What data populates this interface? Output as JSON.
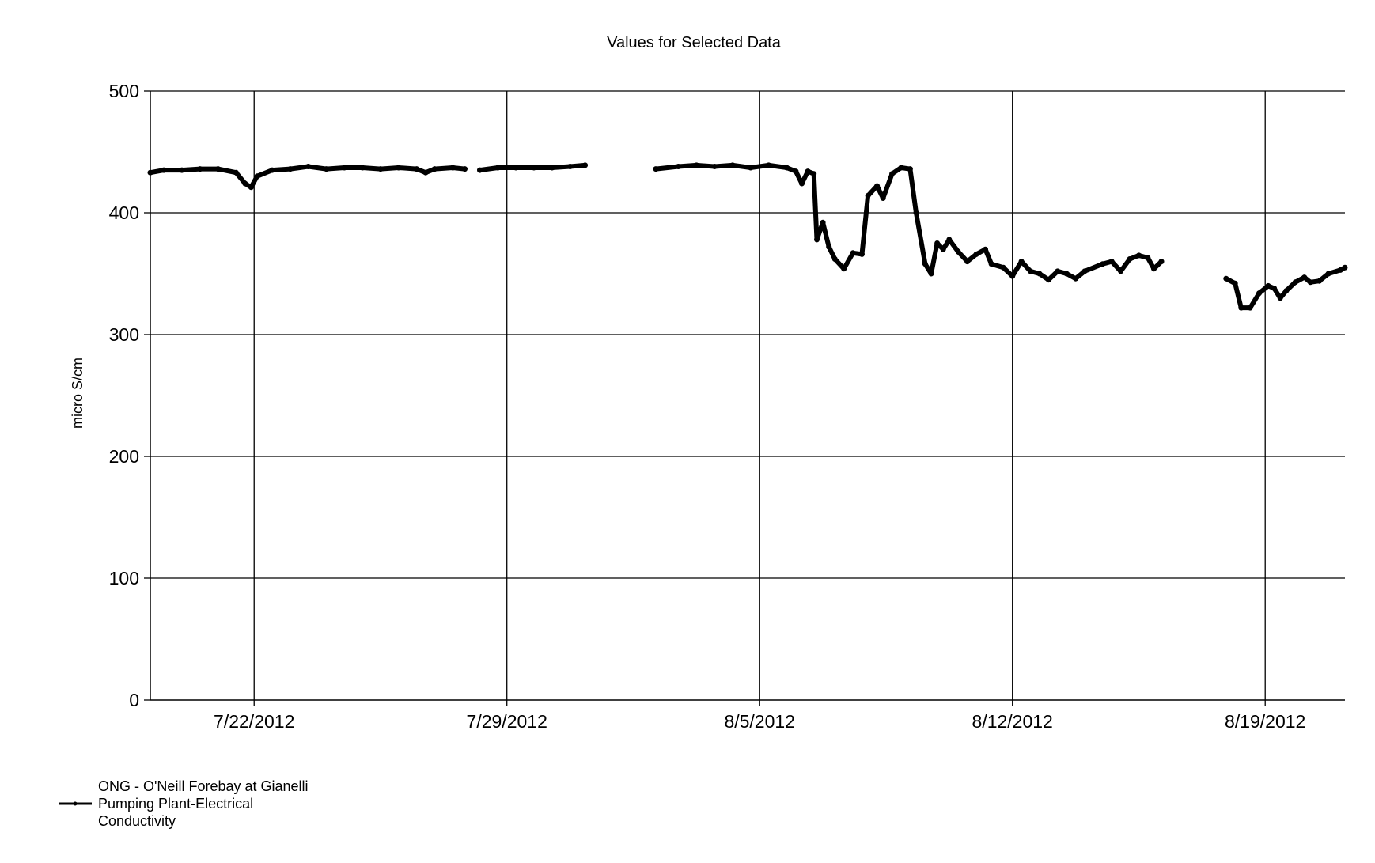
{
  "chart_data": {
    "type": "line",
    "title": "Values for Selected Data",
    "xlabel": "",
    "ylabel": "micro S/cm",
    "ylim": [
      0,
      500
    ],
    "yticks": [
      0,
      100,
      200,
      300,
      400,
      500
    ],
    "xlim": [
      "7/19/2012 03:00",
      "8/21/2012 05:00"
    ],
    "xticks": [
      {
        "date": "7/22/2012",
        "label": "7/22/2012"
      },
      {
        "date": "7/29/2012",
        "label": "7/29/2012"
      },
      {
        "date": "8/5/2012",
        "label": "8/5/2012"
      },
      {
        "date": "8/12/2012",
        "label": "8/12/2012"
      },
      {
        "date": "8/19/2012",
        "label": "8/19/2012"
      }
    ],
    "grid": true,
    "legend_position": "bottom-left",
    "series_color": "#000000",
    "series": [
      {
        "name": "ONG - O'Neill Forebay at Gianelli Pumping Plant-Electrical Conductivity",
        "segments": [
          [
            [
              "7/19/2012 03:00",
              433
            ],
            [
              "7/19/2012 12:00",
              435
            ],
            [
              "7/20/2012 00:00",
              435
            ],
            [
              "7/20/2012 12:00",
              436
            ],
            [
              "7/21/2012 00:00",
              436
            ],
            [
              "7/21/2012 12:00",
              433
            ],
            [
              "7/21/2012 18:00",
              424
            ],
            [
              "7/21/2012 22:00",
              421
            ],
            [
              "7/22/2012 02:00",
              430
            ],
            [
              "7/22/2012 12:00",
              435
            ],
            [
              "7/23/2012 00:00",
              436
            ],
            [
              "7/23/2012 12:00",
              438
            ],
            [
              "7/24/2012 00:00",
              436
            ],
            [
              "7/24/2012 12:00",
              437
            ],
            [
              "7/25/2012 00:00",
              437
            ],
            [
              "7/25/2012 12:00",
              436
            ],
            [
              "7/26/2012 00:00",
              437
            ],
            [
              "7/26/2012 12:00",
              436
            ],
            [
              "7/26/2012 18:00",
              433
            ],
            [
              "7/27/2012 00:00",
              436
            ],
            [
              "7/27/2012 12:00",
              437
            ],
            [
              "7/27/2012 20:00",
              436
            ]
          ],
          [
            [
              "7/28/2012 06:00",
              435
            ],
            [
              "7/28/2012 18:00",
              437
            ],
            [
              "7/29/2012 06:00",
              437
            ],
            [
              "7/29/2012 18:00",
              437
            ],
            [
              "7/30/2012 06:00",
              437
            ],
            [
              "7/30/2012 18:00",
              438
            ],
            [
              "7/31/2012 04:00",
              439
            ]
          ],
          [
            [
              "8/2/2012 03:00",
              436
            ],
            [
              "8/2/2012 18:00",
              438
            ],
            [
              "8/3/2012 06:00",
              439
            ],
            [
              "8/3/2012 18:00",
              438
            ],
            [
              "8/4/2012 06:00",
              439
            ],
            [
              "8/4/2012 18:00",
              437
            ],
            [
              "8/5/2012 06:00",
              439
            ],
            [
              "8/5/2012 18:00",
              437
            ],
            [
              "8/6/2012 00:00",
              434
            ],
            [
              "8/6/2012 04:00",
              424
            ],
            [
              "8/6/2012 08:00",
              434
            ],
            [
              "8/6/2012 12:00",
              432
            ],
            [
              "8/6/2012 14:00",
              378
            ],
            [
              "8/6/2012 18:00",
              392
            ],
            [
              "8/6/2012 22:00",
              372
            ],
            [
              "8/7/2012 02:00",
              362
            ],
            [
              "8/7/2012 08:00",
              354
            ],
            [
              "8/7/2012 14:00",
              367
            ],
            [
              "8/7/2012 20:00",
              366
            ],
            [
              "8/8/2012 00:00",
              414
            ],
            [
              "8/8/2012 06:00",
              422
            ],
            [
              "8/8/2012 10:00",
              412
            ],
            [
              "8/8/2012 16:00",
              432
            ],
            [
              "8/8/2012 22:00",
              437
            ],
            [
              "8/9/2012 04:00",
              436
            ],
            [
              "8/9/2012 08:00",
              400
            ],
            [
              "8/9/2012 14:00",
              358
            ],
            [
              "8/9/2012 18:00",
              350
            ],
            [
              "8/9/2012 22:00",
              375
            ],
            [
              "8/10/2012 02:00",
              370
            ],
            [
              "8/10/2012 06:00",
              378
            ],
            [
              "8/10/2012 12:00",
              368
            ],
            [
              "8/10/2012 18:00",
              360
            ],
            [
              "8/11/2012 00:00",
              366
            ],
            [
              "8/11/2012 06:00",
              370
            ],
            [
              "8/11/2012 10:00",
              358
            ],
            [
              "8/11/2012 18:00",
              355
            ],
            [
              "8/12/2012 00:00",
              348
            ],
            [
              "8/12/2012 06:00",
              360
            ],
            [
              "8/12/2012 12:00",
              352
            ],
            [
              "8/12/2012 18:00",
              350
            ],
            [
              "8/13/2012 00:00",
              345
            ],
            [
              "8/13/2012 06:00",
              352
            ],
            [
              "8/13/2012 12:00",
              350
            ],
            [
              "8/13/2012 18:00",
              346
            ],
            [
              "8/14/2012 00:00",
              352
            ],
            [
              "8/14/2012 12:00",
              358
            ],
            [
              "8/14/2012 18:00",
              360
            ],
            [
              "8/15/2012 00:00",
              352
            ],
            [
              "8/15/2012 06:00",
              362
            ],
            [
              "8/15/2012 12:00",
              365
            ],
            [
              "8/15/2012 18:00",
              363
            ],
            [
              "8/15/2012 22:00",
              354
            ],
            [
              "8/16/2012 03:00",
              360
            ]
          ],
          [
            [
              "8/17/2012 22:00",
              346
            ],
            [
              "8/18/2012 04:00",
              342
            ],
            [
              "8/18/2012 08:00",
              322
            ],
            [
              "8/18/2012 14:00",
              322
            ],
            [
              "8/18/2012 20:00",
              334
            ],
            [
              "8/19/2012 02:00",
              340
            ],
            [
              "8/19/2012 06:00",
              338
            ],
            [
              "8/19/2012 10:00",
              330
            ],
            [
              "8/19/2012 14:00",
              336
            ],
            [
              "8/19/2012 20:00",
              343
            ],
            [
              "8/20/2012 02:00",
              347
            ],
            [
              "8/20/2012 06:00",
              343
            ],
            [
              "8/20/2012 12:00",
              344
            ],
            [
              "8/20/2012 18:00",
              350
            ],
            [
              "8/21/2012 02:00",
              353
            ],
            [
              "8/21/2012 05:00",
              355
            ]
          ]
        ]
      }
    ]
  }
}
